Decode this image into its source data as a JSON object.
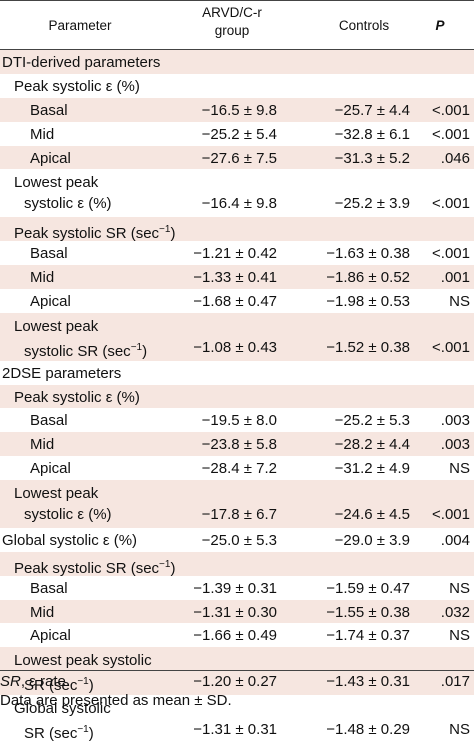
{
  "header": {
    "parameter": "Parameter",
    "arvd_line1": "ARVD/C-r",
    "arvd_line2": "group",
    "controls": "Controls",
    "p": "P"
  },
  "rows": [
    {
      "label": "DTI-derived parameters",
      "level": 0,
      "shade": "pink",
      "lines": 1,
      "arvd": "",
      "ctrl": "",
      "p": ""
    },
    {
      "label": "Peak systolic ε (%)",
      "level": 1,
      "shade": "white",
      "lines": 1,
      "arvd": "",
      "ctrl": "",
      "p": ""
    },
    {
      "label": "Basal",
      "level": 2,
      "shade": "pink",
      "lines": 1,
      "arvd": "−16.5 ± 9.8",
      "ctrl": "−25.7 ± 4.4",
      "p": "<.001"
    },
    {
      "label": "Mid",
      "level": 2,
      "shade": "white",
      "lines": 1,
      "arvd": "−25.2 ± 5.4",
      "ctrl": "−32.8 ± 6.1",
      "p": "<.001"
    },
    {
      "label": "Apical",
      "level": 2,
      "shade": "pink",
      "lines": 1,
      "arvd": "−27.6 ± 7.5",
      "ctrl": "−31.3 ± 5.2",
      "p": ".046"
    },
    {
      "label": "Lowest peak",
      "label2": "systolic ε (%)",
      "level": 1,
      "shade": "white",
      "lines": 2,
      "arvd": "−16.4 ± 9.8",
      "ctrl": "−25.2 ± 3.9",
      "p": "<.001"
    },
    {
      "label": "Peak systolic SR (sec",
      "sup": "−1",
      "tail": ")",
      "level": 1,
      "shade": "pink",
      "lines": 1,
      "arvd": "",
      "ctrl": "",
      "p": ""
    },
    {
      "label": "Basal",
      "level": 2,
      "shade": "white",
      "lines": 1,
      "arvd": "−1.21 ± 0.42",
      "ctrl": "−1.63 ± 0.38",
      "p": "<.001"
    },
    {
      "label": "Mid",
      "level": 2,
      "shade": "pink",
      "lines": 1,
      "arvd": "−1.33 ± 0.41",
      "ctrl": "−1.86 ± 0.52",
      "p": ".001"
    },
    {
      "label": "Apical",
      "level": 2,
      "shade": "white",
      "lines": 1,
      "arvd": "−1.68 ± 0.47",
      "ctrl": "−1.98 ± 0.53",
      "p": "NS"
    },
    {
      "label": "Lowest peak",
      "label2": "systolic SR (sec",
      "sup": "−1",
      "tail": ")",
      "level": 1,
      "shade": "pink",
      "lines": 2,
      "arvd": "−1.08 ± 0.43",
      "ctrl": "−1.52 ± 0.38",
      "p": "<.001"
    },
    {
      "label": "2DSE parameters",
      "level": 0,
      "shade": "white",
      "lines": 1,
      "arvd": "",
      "ctrl": "",
      "p": ""
    },
    {
      "label": "Peak systolic ε (%)",
      "level": 1,
      "shade": "pink",
      "lines": 1,
      "arvd": "",
      "ctrl": "",
      "p": ""
    },
    {
      "label": "Basal",
      "level": 2,
      "shade": "white",
      "lines": 1,
      "arvd": "−19.5 ± 8.0",
      "ctrl": "−25.2 ± 5.3",
      "p": ".003"
    },
    {
      "label": "Mid",
      "level": 2,
      "shade": "pink",
      "lines": 1,
      "arvd": "−23.8 ± 5.8",
      "ctrl": "−28.2 ± 4.4",
      "p": ".003"
    },
    {
      "label": "Apical",
      "level": 2,
      "shade": "white",
      "lines": 1,
      "arvd": "−28.4 ± 7.2",
      "ctrl": "−31.2 ± 4.9",
      "p": "NS"
    },
    {
      "label": "Lowest peak",
      "label2": "systolic ε (%)",
      "level": 1,
      "shade": "pink",
      "lines": 2,
      "arvd": "−17.8 ± 6.7",
      "ctrl": "−24.6 ± 4.5",
      "p": "<.001"
    },
    {
      "label": "Global systolic ε (%)",
      "level": 0,
      "shade": "white",
      "lines": 1,
      "arvd": "−25.0 ± 5.3",
      "ctrl": "−29.0 ± 3.9",
      "p": ".004"
    },
    {
      "label": "Peak systolic SR (sec",
      "sup": "−1",
      "tail": ")",
      "level": 1,
      "shade": "pink",
      "lines": 1,
      "arvd": "",
      "ctrl": "",
      "p": ""
    },
    {
      "label": "Basal",
      "level": 2,
      "shade": "white",
      "lines": 1,
      "arvd": "−1.39 ± 0.31",
      "ctrl": "−1.59 ± 0.47",
      "p": "NS"
    },
    {
      "label": "Mid",
      "level": 2,
      "shade": "pink",
      "lines": 1,
      "arvd": "−1.31 ± 0.30",
      "ctrl": "−1.55 ± 0.38",
      "p": ".032"
    },
    {
      "label": "Apical",
      "level": 2,
      "shade": "white",
      "lines": 1,
      "arvd": "−1.66 ± 0.49",
      "ctrl": "−1.74 ± 0.37",
      "p": "NS"
    },
    {
      "label": "Lowest peak systolic",
      "label2": "SR (sec",
      "sup": "−1",
      "tail": ")",
      "level": 1,
      "shade": "pink",
      "lines": 2,
      "arvd": "−1.20 ± 0.27",
      "ctrl": "−1.43 ± 0.31",
      "p": ".017"
    },
    {
      "label": "Global systolic",
      "label2": "SR (sec",
      "sup": "−1",
      "tail": ")",
      "level": 1,
      "shade": "white",
      "lines": 2,
      "arvd": "−1.31 ± 0.31",
      "ctrl": "−1.48 ± 0.29",
      "p": "NS"
    }
  ],
  "footnotes": {
    "abbrev_term": "SR",
    "abbrev_def": ", ε rate.",
    "note": "Data are presented as mean ± SD."
  }
}
